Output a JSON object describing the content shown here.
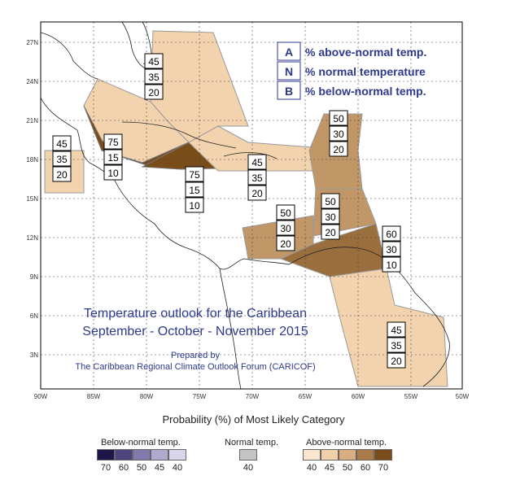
{
  "map": {
    "lon_labels": [
      "90W",
      "85W",
      "80W",
      "75W",
      "70W",
      "65W",
      "60W",
      "55W",
      "50W"
    ],
    "lat_labels": [
      "27N",
      "24N",
      "21N",
      "18N",
      "15N",
      "12N",
      "9N",
      "6N",
      "3N"
    ],
    "key": [
      {
        "letter": "A",
        "text": "% above-normal temp."
      },
      {
        "letter": "N",
        "text": "% normal temperature"
      },
      {
        "letter": "B",
        "text": "% below-normal temp."
      }
    ],
    "title_line1": "Temperature outlook for the Caribbean",
    "title_line2": "September - October - November 2015",
    "prepared_by": "Prepared by",
    "forum": "The Caribbean Regional Climate Outlook Forum (CARICOF)",
    "regions": [
      {
        "id": "bahamas",
        "color": "#f2d3ae",
        "values": [
          "45",
          "35",
          "20"
        ]
      },
      {
        "id": "belize-honduras",
        "color": "#7a4c1a",
        "values": [
          "75",
          "15",
          "10"
        ]
      },
      {
        "id": "cayman-jamaica",
        "color": "#7a4c1a",
        "values": [
          "75",
          "15",
          "10"
        ]
      },
      {
        "id": "greater-antilles",
        "color": "#f2d3ae",
        "values": [
          "45",
          "35",
          "20"
        ]
      },
      {
        "id": "mexico-yucatan",
        "color": "#f2d3ae",
        "values": [
          "45",
          "35",
          "20"
        ]
      },
      {
        "id": "leeward-islands",
        "color": "#c19768",
        "values": [
          "50",
          "30",
          "20"
        ]
      },
      {
        "id": "windward-islands",
        "color": "#c19768",
        "values": [
          "50",
          "30",
          "20"
        ]
      },
      {
        "id": "abc-islands",
        "color": "#c19768",
        "values": [
          "50",
          "30",
          "20"
        ]
      },
      {
        "id": "trinidad-venezuela",
        "color": "#9b6e3e",
        "values": [
          "60",
          "30",
          "10"
        ]
      },
      {
        "id": "guianas",
        "color": "#f2d3ae",
        "values": [
          "45",
          "35",
          "20"
        ]
      }
    ],
    "colors": {
      "above": "#9b6e3e",
      "normal": "#c8c8c8",
      "below": "#1a1040"
    }
  },
  "figure_title": "Probability (%) of Most Likely Category",
  "legend": {
    "below": {
      "label": "Below-normal temp.",
      "values": [
        "70",
        "60",
        "50",
        "45",
        "40"
      ],
      "colors": [
        "#1e1648",
        "#4e4580",
        "#8379ad",
        "#afa8cf",
        "#d9d5ea"
      ]
    },
    "normal": {
      "label": "Normal temp.",
      "values": [
        "40"
      ],
      "colors": [
        "#c4c4c4"
      ]
    },
    "above": {
      "label": "Above-normal temp.",
      "values": [
        "40",
        "45",
        "50",
        "60",
        "70"
      ],
      "colors": [
        "#fae6cf",
        "#f0d0a8",
        "#d6ae7f",
        "#aa7a48",
        "#7a4c1a"
      ]
    }
  }
}
